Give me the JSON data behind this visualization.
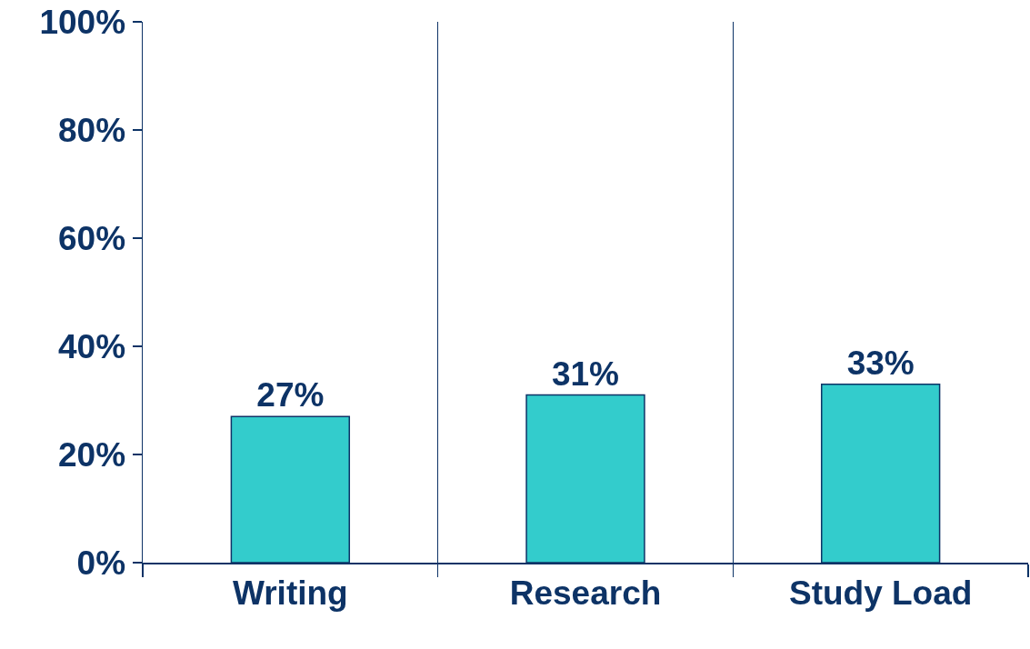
{
  "chart_data": {
    "type": "bar",
    "categories": [
      "Writing",
      "Research",
      "Study Load"
    ],
    "values": [
      27,
      31,
      33
    ],
    "value_labels": [
      "27%",
      "31%",
      "33%"
    ],
    "color": "#33cccc",
    "ylim": [
      0,
      100
    ],
    "yticks": [
      {
        "value": 0,
        "label": "0%"
      },
      {
        "value": 20,
        "label": "20%"
      },
      {
        "value": 40,
        "label": "40%"
      },
      {
        "value": 60,
        "label": "60%"
      },
      {
        "value": 80,
        "label": "80%"
      },
      {
        "value": 100,
        "label": "100%"
      }
    ],
    "grid": "x"
  }
}
